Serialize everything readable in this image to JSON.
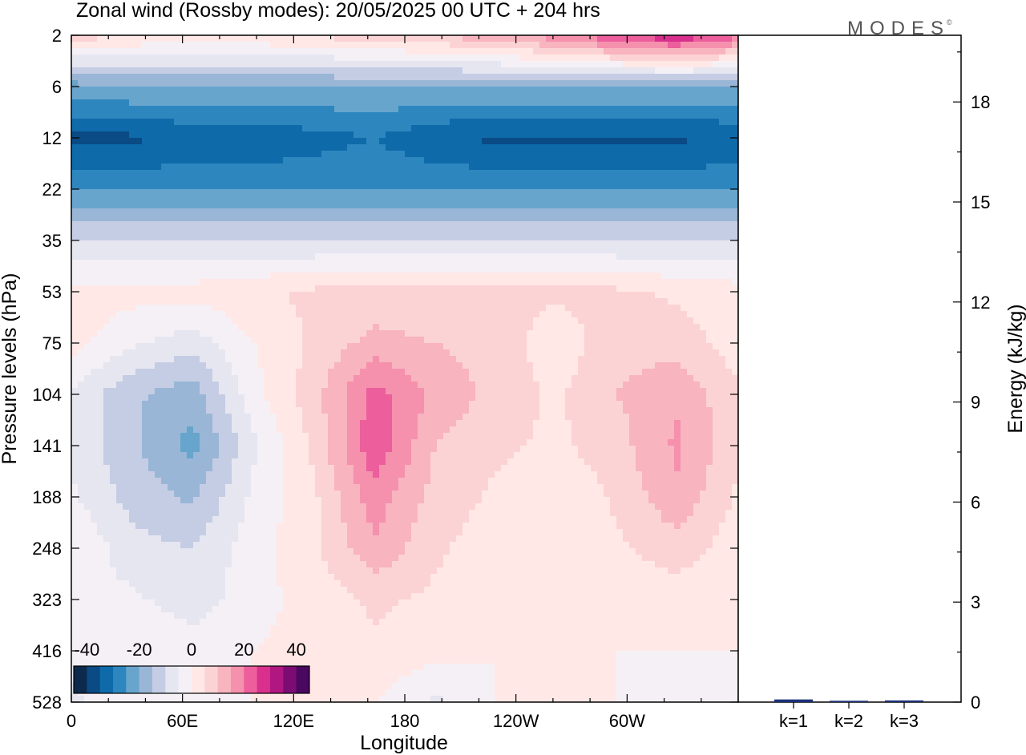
{
  "title": "Zonal wind (Rossby modes):  20/05/2025  00 UTC  + 204 hrs",
  "brand": "MODES",
  "brand_mark": "©",
  "chart_data": [
    {
      "type": "heatmap",
      "variable": "Zonal wind",
      "xlabel": "Longitude",
      "ylabel": "Pressure levels (hPa)",
      "x_ticks": [
        "0",
        "60E",
        "120E",
        "180",
        "120W",
        "60W"
      ],
      "y_ticks": [
        "2",
        "6",
        "12",
        "22",
        "35",
        "53",
        "75",
        "104",
        "141",
        "188",
        "248",
        "323",
        "416",
        "528"
      ],
      "y_order": "top-to-bottom",
      "colorbar": {
        "tick_labels": [
          "-40",
          "-20",
          "0",
          "20",
          "40"
        ],
        "colors": [
          "#0d2a4c",
          "#0a4a85",
          "#0f6aaa",
          "#2e86bf",
          "#67a5cd",
          "#9ab6d6",
          "#c5cde4",
          "#e6e6f1",
          "#f5f0f6",
          "#ffe8e6",
          "#fcd3d4",
          "#f8b4bf",
          "#f590ad",
          "#ec5e9c",
          "#d8308c",
          "#b01780",
          "#7b0c73",
          "#4a0860"
        ]
      },
      "field_rows": [
        {
          "level": "2",
          "values": [
            8,
            5,
            3,
            4,
            6,
            8,
            10,
            14,
            18,
            25,
            30,
            22
          ]
        },
        {
          "level": "6",
          "values": [
            -22,
            -20,
            -20,
            -20,
            -20,
            -20,
            -20,
            -20,
            -20,
            -20,
            -20,
            -20
          ]
        },
        {
          "level": "12",
          "values": [
            -36,
            -36,
            -34,
            -34,
            -32,
            -30,
            -34,
            -36,
            -36,
            -36,
            -36,
            -34
          ]
        },
        {
          "level": "22",
          "values": [
            -26,
            -26,
            -26,
            -26,
            -26,
            -26,
            -26,
            -26,
            -26,
            -26,
            -26,
            -26
          ]
        },
        {
          "level": "35",
          "values": [
            -10,
            -10,
            -10,
            -10,
            -10,
            -10,
            -10,
            -10,
            -10,
            -10,
            -10,
            -10
          ]
        },
        {
          "level": "53",
          "values": [
            2,
            2,
            2,
            4,
            6,
            6,
            6,
            6,
            6,
            6,
            4,
            2
          ]
        },
        {
          "level": "75",
          "values": [
            2,
            -4,
            -8,
            0,
            6,
            12,
            10,
            8,
            2,
            8,
            8,
            2
          ]
        },
        {
          "level": "104",
          "values": [
            -6,
            -14,
            -18,
            -2,
            8,
            22,
            14,
            8,
            4,
            10,
            14,
            6
          ]
        },
        {
          "level": "141",
          "values": [
            -6,
            -14,
            -22,
            -6,
            6,
            24,
            10,
            6,
            4,
            8,
            16,
            6
          ]
        },
        {
          "level": "188",
          "values": [
            -4,
            -12,
            -16,
            -4,
            4,
            18,
            8,
            4,
            0,
            6,
            14,
            4
          ]
        },
        {
          "level": "248",
          "values": [
            0,
            -8,
            -10,
            -2,
            4,
            14,
            6,
            2,
            0,
            4,
            8,
            2
          ]
        },
        {
          "level": "323",
          "values": [
            -4,
            -4,
            -8,
            -2,
            2,
            6,
            4,
            2,
            0,
            2,
            2,
            0
          ]
        },
        {
          "level": "416",
          "values": [
            -4,
            0,
            -2,
            0,
            2,
            4,
            2,
            0,
            0,
            0,
            0,
            0
          ]
        },
        {
          "level": "528",
          "values": [
            -6,
            -2,
            -2,
            0,
            0,
            0,
            -6,
            0,
            0,
            0,
            -4,
            -4
          ]
        }
      ]
    },
    {
      "type": "bar",
      "ylabel": "Energy (kJ/kg)",
      "ylim": [
        0,
        20
      ],
      "y_ticks": [
        "0",
        "3",
        "6",
        "9",
        "12",
        "15",
        "18"
      ],
      "categories": [
        "k=1",
        "k=2",
        "k=3"
      ],
      "values": [
        0.08,
        0.04,
        0.05
      ],
      "bar_color": "#1c2f7a"
    }
  ]
}
